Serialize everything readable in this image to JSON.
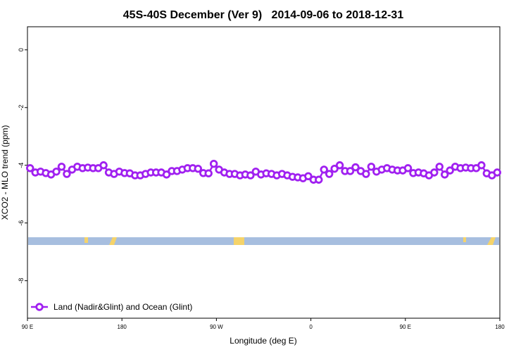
{
  "chart_data": {
    "type": "line",
    "title": "45S-40S December (Ver 9)   2014-09-06 to 2018-12-31",
    "xlabel": "Longitude (deg E)",
    "ylabel": "XCO2 - MLO trend (ppm)",
    "xlim": [
      90,
      540
    ],
    "ylim": [
      -9.3,
      0.8
    ],
    "xticks": [
      {
        "value": 90,
        "label": "90 E"
      },
      180,
      {
        "value": 270,
        "label": "90 W"
      },
      {
        "value": 360,
        "label": "0"
      },
      {
        "value": 450,
        "label": "90 E"
      },
      {
        "value": 540,
        "label": "180"
      }
    ],
    "yticks": [
      0,
      -2,
      -4,
      -6,
      -8
    ],
    "grid": false,
    "legend": "bottom-left",
    "x": [
      92.5,
      97.5,
      102.5,
      107.5,
      112.5,
      117.5,
      122.5,
      127.5,
      132.5,
      137.5,
      142.5,
      147.5,
      152.5,
      157.5,
      162.5,
      167.5,
      172.5,
      177.5,
      182.5,
      187.5,
      192.5,
      197.5,
      202.5,
      207.5,
      212.5,
      217.5,
      222.5,
      227.5,
      232.5,
      237.5,
      242.5,
      247.5,
      252.5,
      257.5,
      262.5,
      267.5,
      272.5,
      277.5,
      282.5,
      287.5,
      292.5,
      297.5,
      302.5,
      307.5,
      312.5,
      317.5,
      322.5,
      327.5,
      332.5,
      337.5,
      342.5,
      347.5,
      352.5,
      357.5,
      362.5,
      367.5,
      372.5,
      377.5,
      382.5,
      387.5,
      392.5,
      397.5,
      402.5,
      407.5,
      412.5,
      417.5,
      422.5,
      427.5,
      432.5,
      437.5,
      442.5,
      447.5,
      452.5,
      457.5,
      462.5,
      467.5,
      472.5,
      477.5,
      482.5,
      487.5,
      492.5,
      497.5,
      502.5,
      507.5,
      512.5,
      517.5,
      522.5,
      527.5,
      532.5,
      537.5
    ],
    "series": [
      {
        "name": "Land (Nadir&Glint) and Ocean (Glint)",
        "color": "#a020f0",
        "values": [
          -4.1,
          -4.25,
          -4.22,
          -4.27,
          -4.32,
          -4.22,
          -4.05,
          -4.3,
          -4.15,
          -4.05,
          -4.1,
          -4.08,
          -4.1,
          -4.1,
          -4.0,
          -4.25,
          -4.3,
          -4.22,
          -4.27,
          -4.28,
          -4.35,
          -4.35,
          -4.3,
          -4.25,
          -4.25,
          -4.25,
          -4.32,
          -4.2,
          -4.2,
          -4.15,
          -4.1,
          -4.1,
          -4.12,
          -4.27,
          -4.28,
          -3.95,
          -4.15,
          -4.25,
          -4.3,
          -4.3,
          -4.35,
          -4.32,
          -4.35,
          -4.22,
          -4.32,
          -4.28,
          -4.3,
          -4.35,
          -4.3,
          -4.35,
          -4.4,
          -4.42,
          -4.45,
          -4.38,
          -4.5,
          -4.5,
          -4.15,
          -4.3,
          -4.12,
          -4.0,
          -4.2,
          -4.2,
          -4.07,
          -4.2,
          -4.3,
          -4.05,
          -4.22,
          -4.15,
          -4.1,
          -4.15,
          -4.18,
          -4.18,
          -4.1,
          -4.27,
          -4.25,
          -4.28,
          -4.35,
          -4.25,
          -4.05,
          -4.32,
          -4.18,
          -4.05,
          -4.1,
          -4.08,
          -4.1,
          -4.1,
          -4.0,
          -4.28,
          -4.35,
          -4.25
        ]
      }
    ]
  }
}
